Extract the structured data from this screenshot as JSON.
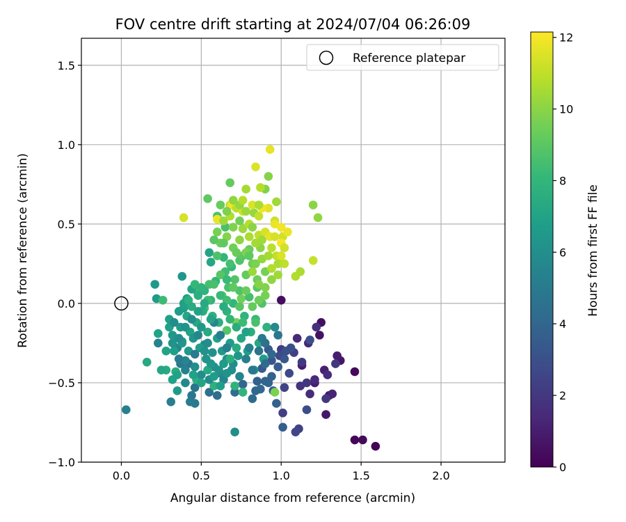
{
  "chart_data": {
    "type": "scatter",
    "title": "FOV centre drift starting at 2024/07/04 06:26:09",
    "xlabel": "Angular distance from reference (arcmin)",
    "ylabel": "Rotation from reference (arcmin)",
    "xlim": [
      -0.25,
      2.4
    ],
    "ylim": [
      -1.0,
      1.67
    ],
    "xticks": [
      0.0,
      0.5,
      1.0,
      1.5,
      2.0
    ],
    "xtick_labels": [
      "0.0",
      "0.5",
      "1.0",
      "1.5",
      "2.0"
    ],
    "yticks": [
      -1.0,
      -0.5,
      0.0,
      0.5,
      1.0,
      1.5
    ],
    "ytick_labels": [
      "−1.0",
      "−0.5",
      "0.0",
      "0.5",
      "1.0",
      "1.5"
    ],
    "grid": true,
    "legend": {
      "position": "top-right",
      "entries": [
        "Reference platepar"
      ]
    },
    "reference_point": {
      "x": 0.0,
      "y": 0.0,
      "marker": "open-circle"
    },
    "colorbar": {
      "label": "Hours from first FF file",
      "colormap": "viridis",
      "range": [
        0,
        12.15
      ],
      "ticks": [
        0,
        2,
        4,
        6,
        8,
        10,
        12
      ],
      "tick_labels": [
        "0",
        "2",
        "4",
        "6",
        "8",
        "10",
        "12"
      ]
    },
    "points": [
      [
        1.59,
        -0.9,
        0.1
      ],
      [
        1.46,
        -0.86,
        0.2
      ],
      [
        1.51,
        -0.86,
        0.3
      ],
      [
        1.46,
        -0.43,
        0.3
      ],
      [
        1.0,
        0.02,
        0.4
      ],
      [
        1.25,
        -0.12,
        0.5
      ],
      [
        1.24,
        -0.2,
        0.6
      ],
      [
        1.37,
        -0.36,
        0.7
      ],
      [
        1.3,
        -0.58,
        0.8
      ],
      [
        1.28,
        -0.7,
        0.8
      ],
      [
        1.13,
        -0.39,
        0.9
      ],
      [
        1.21,
        -0.5,
        1.0
      ],
      [
        1.35,
        -0.33,
        1.0
      ],
      [
        1.27,
        -0.42,
        1.1
      ],
      [
        1.32,
        -0.57,
        1.2
      ],
      [
        1.17,
        -0.25,
        1.3
      ],
      [
        1.1,
        -0.22,
        1.4
      ],
      [
        1.21,
        -0.48,
        1.5
      ],
      [
        1.18,
        -0.57,
        1.5
      ],
      [
        1.29,
        -0.45,
        1.6
      ],
      [
        1.22,
        -0.15,
        1.7
      ],
      [
        1.12,
        -0.52,
        1.8
      ],
      [
        1.16,
        -0.5,
        1.9
      ],
      [
        1.34,
        -0.38,
        2.0
      ],
      [
        1.28,
        -0.6,
        2.0
      ],
      [
        1.13,
        -0.37,
        2.1
      ],
      [
        1.0,
        -0.29,
        2.2
      ],
      [
        1.08,
        -0.31,
        2.3
      ],
      [
        1.01,
        -0.69,
        2.3
      ],
      [
        1.11,
        -0.79,
        2.4
      ],
      [
        1.02,
        -0.53,
        2.5
      ],
      [
        1.09,
        -0.81,
        2.6
      ],
      [
        1.05,
        -0.44,
        2.7
      ],
      [
        0.99,
        -0.33,
        2.8
      ],
      [
        1.16,
        -0.67,
        2.9
      ],
      [
        1.18,
        -0.23,
        3.0
      ],
      [
        1.03,
        -0.3,
        3.1
      ],
      [
        0.94,
        -0.36,
        3.2
      ],
      [
        0.95,
        -0.55,
        3.3
      ],
      [
        0.88,
        -0.41,
        3.4
      ],
      [
        0.92,
        -0.29,
        3.5
      ],
      [
        1.01,
        -0.78,
        3.6
      ],
      [
        0.85,
        -0.49,
        3.7
      ],
      [
        0.97,
        -0.63,
        3.8
      ],
      [
        0.9,
        -0.49,
        3.9
      ],
      [
        0.76,
        -0.51,
        4.0
      ],
      [
        0.87,
        -0.54,
        4.1
      ],
      [
        0.82,
        -0.6,
        4.2
      ],
      [
        0.71,
        -0.56,
        4.3
      ],
      [
        0.6,
        -0.58,
        4.4
      ],
      [
        0.55,
        -0.56,
        4.5
      ],
      [
        0.46,
        -0.53,
        4.6
      ],
      [
        0.42,
        -0.38,
        4.7
      ],
      [
        0.37,
        -0.38,
        4.8
      ],
      [
        0.44,
        -0.58,
        4.9
      ],
      [
        0.46,
        -0.63,
        5.0
      ],
      [
        0.43,
        -0.62,
        5.1
      ],
      [
        0.31,
        -0.62,
        5.2
      ],
      [
        0.03,
        -0.67,
        5.3
      ],
      [
        0.23,
        -0.25,
        5.4
      ],
      [
        0.35,
        -0.28,
        5.5
      ],
      [
        0.4,
        -0.36,
        5.6
      ],
      [
        0.52,
        -0.26,
        5.7
      ],
      [
        0.62,
        -0.44,
        5.8
      ],
      [
        0.71,
        -0.81,
        5.9
      ],
      [
        0.66,
        -0.35,
        6.0
      ],
      [
        0.57,
        -0.31,
        6.1
      ],
      [
        0.61,
        -0.42,
        6.2
      ],
      [
        0.38,
        -0.24,
        6.3
      ],
      [
        0.38,
        0.17,
        6.4
      ],
      [
        0.21,
        0.12,
        6.5
      ],
      [
        0.22,
        0.03,
        6.6
      ],
      [
        0.41,
        0.03,
        6.7
      ],
      [
        0.39,
        -0.03,
        6.8
      ],
      [
        0.3,
        -0.15,
        6.9
      ],
      [
        0.23,
        -0.19,
        7.0
      ],
      [
        0.55,
        0.32,
        7.1
      ],
      [
        0.56,
        0.26,
        7.2
      ],
      [
        0.16,
        -0.37,
        7.3
      ],
      [
        0.28,
        -0.42,
        7.4
      ],
      [
        0.34,
        -0.43,
        7.5
      ],
      [
        0.47,
        -0.48,
        7.6
      ],
      [
        0.58,
        -0.52,
        7.7
      ],
      [
        0.71,
        -0.52,
        7.8
      ],
      [
        0.76,
        -0.56,
        7.9
      ],
      [
        0.64,
        0.29,
        8.0
      ],
      [
        0.69,
        0.23,
        8.1
      ],
      [
        0.47,
        0.08,
        8.2
      ],
      [
        0.26,
        0.02,
        8.3
      ],
      [
        0.52,
        -0.03,
        8.4
      ],
      [
        0.55,
        0.12,
        8.5
      ],
      [
        0.65,
        0.48,
        8.6
      ],
      [
        0.6,
        0.55,
        8.7
      ],
      [
        0.74,
        0.27,
        8.8
      ],
      [
        0.66,
        -0.17,
        8.9
      ],
      [
        0.63,
        0.05,
        9.0
      ],
      [
        0.54,
        0.66,
        9.1
      ],
      [
        0.68,
        0.76,
        9.2
      ],
      [
        0.8,
        0.34,
        9.3
      ],
      [
        0.85,
        0.15,
        9.4
      ],
      [
        0.75,
        0.03,
        9.5
      ],
      [
        0.72,
        -0.12,
        9.6
      ],
      [
        0.96,
        -0.56,
        9.7
      ],
      [
        0.9,
        0.72,
        9.8
      ],
      [
        0.92,
        0.8,
        9.9
      ],
      [
        1.2,
        0.62,
        10.0
      ],
      [
        1.23,
        0.54,
        10.1
      ],
      [
        0.83,
        0.57,
        10.2
      ],
      [
        0.76,
        0.47,
        10.3
      ],
      [
        0.97,
        0.64,
        10.4
      ],
      [
        0.78,
        0.72,
        10.5
      ],
      [
        1.12,
        0.2,
        10.6
      ],
      [
        1.09,
        0.17,
        10.7
      ],
      [
        0.87,
        0.73,
        10.8
      ],
      [
        0.68,
        0.62,
        10.9
      ],
      [
        0.86,
        0.43,
        11.0
      ],
      [
        1.2,
        0.27,
        11.1
      ],
      [
        0.96,
        0.52,
        11.2
      ],
      [
        1.01,
        0.42,
        11.3
      ],
      [
        0.39,
        0.54,
        11.4
      ],
      [
        0.84,
        0.86,
        11.5
      ],
      [
        0.93,
        0.97,
        11.7
      ],
      [
        0.6,
        0.53,
        11.8
      ],
      [
        0.69,
        0.62,
        11.9
      ],
      [
        1.0,
        0.38,
        12.0
      ],
      [
        0.3,
        -0.1,
        6.9
      ],
      [
        0.32,
        -0.2,
        6.5
      ],
      [
        0.33,
        -0.3,
        6.8
      ],
      [
        0.35,
        -0.45,
        7.0
      ],
      [
        0.36,
        -0.05,
        6.7
      ],
      [
        0.37,
        -0.15,
        6.6
      ],
      [
        0.38,
        -0.25,
        6.4
      ],
      [
        0.39,
        0.0,
        6.9
      ],
      [
        0.4,
        -0.5,
        5.7
      ],
      [
        0.41,
        -0.08,
        7.2
      ],
      [
        0.42,
        -0.3,
        6.5
      ],
      [
        0.43,
        -0.18,
        7.0
      ],
      [
        0.44,
        0.09,
        7.1
      ],
      [
        0.45,
        -0.22,
        6.3
      ],
      [
        0.46,
        -0.4,
        6.0
      ],
      [
        0.47,
        -0.12,
        7.3
      ],
      [
        0.48,
        0.05,
        7.6
      ],
      [
        0.49,
        -0.28,
        6.8
      ],
      [
        0.5,
        -0.45,
        5.9
      ],
      [
        0.51,
        -0.05,
        7.5
      ],
      [
        0.52,
        0.08,
        7.8
      ],
      [
        0.53,
        -0.35,
        6.2
      ],
      [
        0.54,
        -0.18,
        7.4
      ],
      [
        0.55,
        -0.48,
        5.8
      ],
      [
        0.56,
        0.02,
        7.9
      ],
      [
        0.57,
        -0.08,
        7.7
      ],
      [
        0.58,
        -0.4,
        6.1
      ],
      [
        0.59,
        0.14,
        8.0
      ],
      [
        0.6,
        -0.22,
        6.8
      ],
      [
        0.61,
        -0.12,
        7.6
      ],
      [
        0.62,
        0.05,
        8.2
      ],
      [
        0.63,
        -0.3,
        6.5
      ],
      [
        0.64,
        -0.48,
        5.6
      ],
      [
        0.65,
        0.2,
        8.4
      ],
      [
        0.66,
        -0.05,
        7.8
      ],
      [
        0.67,
        0.1,
        8.6
      ],
      [
        0.68,
        -0.25,
        6.7
      ],
      [
        0.69,
        -0.42,
        6.0
      ],
      [
        0.7,
        0.0,
        8.0
      ],
      [
        0.71,
        0.15,
        8.8
      ],
      [
        0.72,
        -0.15,
        7.5
      ],
      [
        0.73,
        -0.33,
        6.4
      ],
      [
        0.74,
        0.08,
        8.7
      ],
      [
        0.75,
        -0.22,
        7.2
      ],
      [
        0.76,
        0.3,
        9.0
      ],
      [
        0.77,
        -0.08,
        7.9
      ],
      [
        0.78,
        0.18,
        9.2
      ],
      [
        0.79,
        -0.3,
        6.9
      ],
      [
        0.8,
        0.04,
        8.5
      ],
      [
        0.81,
        -0.18,
        7.6
      ],
      [
        0.82,
        0.25,
        9.4
      ],
      [
        0.83,
        -0.42,
        6.3
      ],
      [
        0.84,
        -0.1,
        8.2
      ],
      [
        0.85,
        0.1,
        9.0
      ],
      [
        0.86,
        -0.25,
        7.3
      ],
      [
        0.87,
        0.35,
        10.0
      ],
      [
        0.88,
        0.0,
        8.8
      ],
      [
        0.89,
        -0.35,
        6.7
      ],
      [
        0.9,
        0.2,
        9.6
      ],
      [
        0.91,
        -0.15,
        7.8
      ],
      [
        0.6,
        0.45,
        9.6
      ],
      [
        0.62,
        0.38,
        9.4
      ],
      [
        0.64,
        0.52,
        10.4
      ],
      [
        0.66,
        0.42,
        9.9
      ],
      [
        0.68,
        0.55,
        10.7
      ],
      [
        0.7,
        0.35,
        9.5
      ],
      [
        0.72,
        0.6,
        10.9
      ],
      [
        0.74,
        0.4,
        10.1
      ],
      [
        0.76,
        0.58,
        11.2
      ],
      [
        0.78,
        0.32,
        9.7
      ],
      [
        0.8,
        0.5,
        10.8
      ],
      [
        0.82,
        0.62,
        11.5
      ],
      [
        0.84,
        0.38,
        10.5
      ],
      [
        0.86,
        0.55,
        11.1
      ],
      [
        0.88,
        0.28,
        10.2
      ],
      [
        0.9,
        0.45,
        11.4
      ],
      [
        0.92,
        0.6,
        11.6
      ],
      [
        0.94,
        0.35,
        10.9
      ],
      [
        0.96,
        0.5,
        11.8
      ],
      [
        0.98,
        0.25,
        10.6
      ],
      [
        1.0,
        0.48,
        11.9
      ],
      [
        1.02,
        0.35,
        11.3
      ],
      [
        0.82,
        0.2,
        10.3
      ],
      [
        0.86,
        0.12,
        9.9
      ],
      [
        0.9,
        0.05,
        9.6
      ],
      [
        0.8,
        0.42,
        10.6
      ],
      [
        0.93,
        0.42,
        11.7
      ],
      [
        0.97,
        0.3,
        11.0
      ],
      [
        0.88,
        0.6,
        11.9
      ],
      [
        0.74,
        0.62,
        10.2
      ],
      [
        0.25,
        -0.42,
        7.2
      ],
      [
        0.28,
        -0.3,
        7.0
      ],
      [
        0.32,
        -0.48,
        6.9
      ],
      [
        0.35,
        -0.55,
        6.6
      ],
      [
        0.45,
        -0.45,
        6.9
      ],
      [
        0.5,
        -0.5,
        7.1
      ],
      [
        0.54,
        -0.42,
        7.3
      ],
      [
        0.58,
        -0.46,
        6.7
      ],
      [
        0.62,
        -0.52,
        6.8
      ],
      [
        0.66,
        -0.44,
        6.2
      ],
      [
        0.7,
        -0.38,
        5.9
      ],
      [
        0.74,
        -0.46,
        5.5
      ],
      [
        0.78,
        -0.35,
        5.2
      ],
      [
        0.82,
        -0.42,
        4.9
      ],
      [
        0.86,
        -0.3,
        4.6
      ],
      [
        0.9,
        -0.38,
        4.2
      ],
      [
        0.94,
        -0.46,
        3.8
      ],
      [
        0.98,
        -0.4,
        3.5
      ],
      [
        0.8,
        -0.28,
        5.3
      ],
      [
        0.84,
        -0.55,
        4.0
      ],
      [
        0.88,
        -0.22,
        5.0
      ],
      [
        0.92,
        -0.5,
        3.9
      ],
      [
        0.96,
        -0.15,
        5.8
      ],
      [
        0.78,
        -0.18,
        7.0
      ],
      [
        0.72,
        -0.28,
        7.4
      ],
      [
        0.68,
        -0.35,
        7.6
      ],
      [
        0.64,
        -0.38,
        6.6
      ],
      [
        0.56,
        -0.38,
        6.4
      ],
      [
        0.52,
        -0.3,
        6.1
      ],
      [
        0.48,
        -0.2,
        5.6
      ],
      [
        0.44,
        -0.1,
        6.0
      ],
      [
        0.4,
        -0.42,
        5.4
      ],
      [
        0.36,
        -0.35,
        5.1
      ],
      [
        0.33,
        -0.12,
        5.9
      ],
      [
        0.46,
        -0.32,
        5.0
      ],
      [
        0.58,
        -0.12,
        5.5
      ],
      [
        0.62,
        -0.2,
        5.2
      ],
      [
        0.66,
        -0.28,
        5.3
      ],
      [
        0.54,
        -0.25,
        5.9
      ],
      [
        0.5,
        -0.15,
        6.5
      ],
      [
        0.42,
        0.02,
        7.7
      ],
      [
        0.46,
        0.12,
        8.1
      ],
      [
        0.5,
        0.1,
        7.9
      ],
      [
        0.54,
        0.02,
        8.3
      ],
      [
        0.58,
        0.12,
        8.6
      ],
      [
        0.62,
        0.18,
        8.9
      ],
      [
        0.66,
        0.02,
        8.4
      ],
      [
        0.7,
        0.1,
        9.1
      ],
      [
        0.74,
        -0.02,
        8.9
      ],
      [
        0.78,
        0.08,
        9.3
      ],
      [
        0.82,
        -0.02,
        9.2
      ],
      [
        0.86,
        0.02,
        9.4
      ],
      [
        0.9,
        0.1,
        9.8
      ],
      [
        0.94,
        0.15,
        10.1
      ],
      [
        0.84,
        -0.12,
        8.6
      ],
      [
        0.76,
        -0.12,
        8.3
      ],
      [
        0.68,
        -0.1,
        8.0
      ],
      [
        0.64,
        -0.02,
        7.5
      ],
      [
        0.56,
        -0.1,
        7.1
      ],
      [
        0.52,
        0.0,
        7.3
      ],
      [
        0.48,
        -0.05,
        6.9
      ],
      [
        0.44,
        -0.02,
        7.4
      ],
      [
        0.4,
        -0.15,
        6.2
      ],
      [
        0.36,
        -0.22,
        6.0
      ],
      [
        0.32,
        -0.25,
        6.2
      ],
      [
        0.6,
        0.3,
        8.7
      ],
      [
        0.64,
        0.38,
        9.1
      ],
      [
        0.68,
        0.25,
        8.5
      ],
      [
        0.72,
        0.32,
        9.3
      ],
      [
        0.66,
        0.15,
        8.2
      ],
      [
        0.7,
        0.48,
        9.8
      ],
      [
        0.74,
        0.52,
        9.5
      ],
      [
        0.78,
        0.58,
        10.3
      ],
      [
        0.82,
        0.48,
        10.0
      ],
      [
        0.86,
        0.62,
        10.6
      ],
      [
        0.58,
        0.4,
        9.0
      ],
      [
        0.62,
        0.62,
        9.3
      ],
      [
        0.66,
        0.58,
        9.7
      ],
      [
        0.7,
        0.65,
        10.1
      ],
      [
        0.76,
        0.65,
        10.8
      ],
      [
        0.8,
        0.3,
        9.1
      ],
      [
        0.84,
        0.25,
        9.7
      ],
      [
        0.88,
        0.4,
        10.4
      ],
      [
        0.92,
        0.3,
        10.5
      ],
      [
        0.96,
        0.42,
        11.4
      ],
      [
        1.0,
        0.3,
        11.5
      ],
      [
        1.04,
        0.45,
        11.8
      ],
      [
        1.02,
        0.25,
        11.0
      ],
      [
        0.98,
        0.18,
        10.4
      ],
      [
        0.94,
        0.22,
        10.7
      ],
      [
        0.9,
        -0.25,
        4.5
      ],
      [
        0.94,
        -0.32,
        4.1
      ],
      [
        0.98,
        -0.2,
        4.8
      ],
      [
        1.02,
        -0.35,
        3.3
      ],
      [
        1.06,
        -0.28,
        3.0
      ]
    ]
  }
}
